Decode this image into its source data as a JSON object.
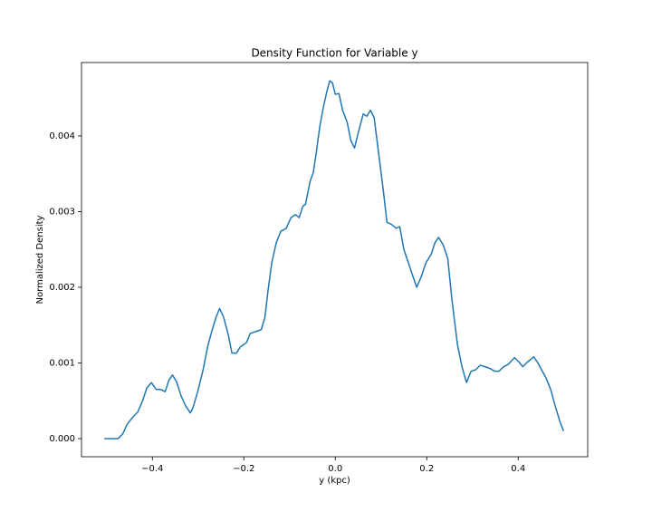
{
  "chart_data": {
    "type": "line",
    "title": "Density Function for Variable y",
    "x_label": "y (kpc)",
    "y_label": "Normalized Density",
    "xlim": [
      -0.555,
      0.552
    ],
    "ylim": [
      -0.00024,
      0.00497
    ],
    "xticks": [
      {
        "value": -0.4,
        "label": "−0.4"
      },
      {
        "value": -0.2,
        "label": "−0.2"
      },
      {
        "value": 0,
        "label": "0.0"
      },
      {
        "value": 0.2,
        "label": "0.2"
      },
      {
        "value": 0.4,
        "label": "0.4"
      }
    ],
    "yticks": [
      {
        "value": 0,
        "label": "0.000"
      },
      {
        "value": 0.001,
        "label": "0.001"
      },
      {
        "value": 0.002,
        "label": "0.002"
      },
      {
        "value": 0.003,
        "label": "0.003"
      },
      {
        "value": 0.004,
        "label": "0.004"
      }
    ],
    "grid": false,
    "color": "#1f77b4",
    "x": [
      -0.505,
      -0.475,
      -0.465,
      -0.455,
      -0.442,
      -0.432,
      -0.422,
      -0.412,
      -0.402,
      -0.392,
      -0.382,
      -0.372,
      -0.364,
      -0.356,
      -0.347,
      -0.337,
      -0.327,
      -0.317,
      -0.311,
      -0.301,
      -0.289,
      -0.279,
      -0.269,
      -0.261,
      -0.253,
      -0.244,
      -0.234,
      -0.226,
      -0.216,
      -0.208,
      -0.194,
      -0.186,
      -0.176,
      -0.162,
      -0.154,
      -0.147,
      -0.139,
      -0.129,
      -0.119,
      -0.107,
      -0.097,
      -0.087,
      -0.079,
      -0.071,
      -0.065,
      -0.055,
      -0.048,
      -0.042,
      -0.034,
      -0.026,
      -0.018,
      -0.012,
      -0.006,
      0.0,
      0.008,
      0.016,
      0.026,
      0.034,
      0.042,
      0.051,
      0.061,
      0.069,
      0.077,
      0.085,
      0.095,
      0.105,
      0.113,
      0.123,
      0.133,
      0.141,
      0.15,
      0.16,
      0.17,
      0.178,
      0.188,
      0.198,
      0.21,
      0.218,
      0.226,
      0.236,
      0.246,
      0.255,
      0.267,
      0.277,
      0.287,
      0.297,
      0.307,
      0.317,
      0.327,
      0.337,
      0.349,
      0.358,
      0.368,
      0.378,
      0.392,
      0.402,
      0.41,
      0.42,
      0.434,
      0.442,
      0.451,
      0.461,
      0.471,
      0.481,
      0.491,
      0.499
    ],
    "values": [
      0,
      0,
      6e-05,
      0.00019,
      0.00029,
      0.00035,
      0.00049,
      0.00067,
      0.00074,
      0.00065,
      0.00065,
      0.00062,
      0.00077,
      0.00084,
      0.00075,
      0.00056,
      0.00043,
      0.00034,
      0.00041,
      0.00062,
      0.00091,
      0.00122,
      0.00144,
      0.0016,
      0.00172,
      0.0016,
      0.00137,
      0.00113,
      0.00113,
      0.00121,
      0.00127,
      0.00139,
      0.00141,
      0.00144,
      0.0016,
      0.00196,
      0.00232,
      0.00259,
      0.00274,
      0.00278,
      0.00292,
      0.00296,
      0.00292,
      0.00307,
      0.0031,
      0.0034,
      0.00352,
      0.00376,
      0.00412,
      0.00438,
      0.0046,
      0.00473,
      0.0047,
      0.00455,
      0.00456,
      0.00434,
      0.00418,
      0.00394,
      0.00384,
      0.00406,
      0.00429,
      0.00426,
      0.00434,
      0.00424,
      0.00376,
      0.00328,
      0.00286,
      0.00283,
      0.00278,
      0.0028,
      0.0025,
      0.00232,
      0.00214,
      0.002,
      0.00214,
      0.00232,
      0.00244,
      0.00259,
      0.00266,
      0.00256,
      0.00238,
      0.00184,
      0.00125,
      0.00095,
      0.00074,
      0.00089,
      0.00091,
      0.00097,
      0.00095,
      0.00093,
      0.00089,
      0.00089,
      0.00095,
      0.00098,
      0.00107,
      0.00101,
      0.00095,
      0.00101,
      0.00108,
      0.00101,
      0.00091,
      0.0008,
      0.00065,
      0.00043,
      0.00023,
      0.0001
    ]
  }
}
